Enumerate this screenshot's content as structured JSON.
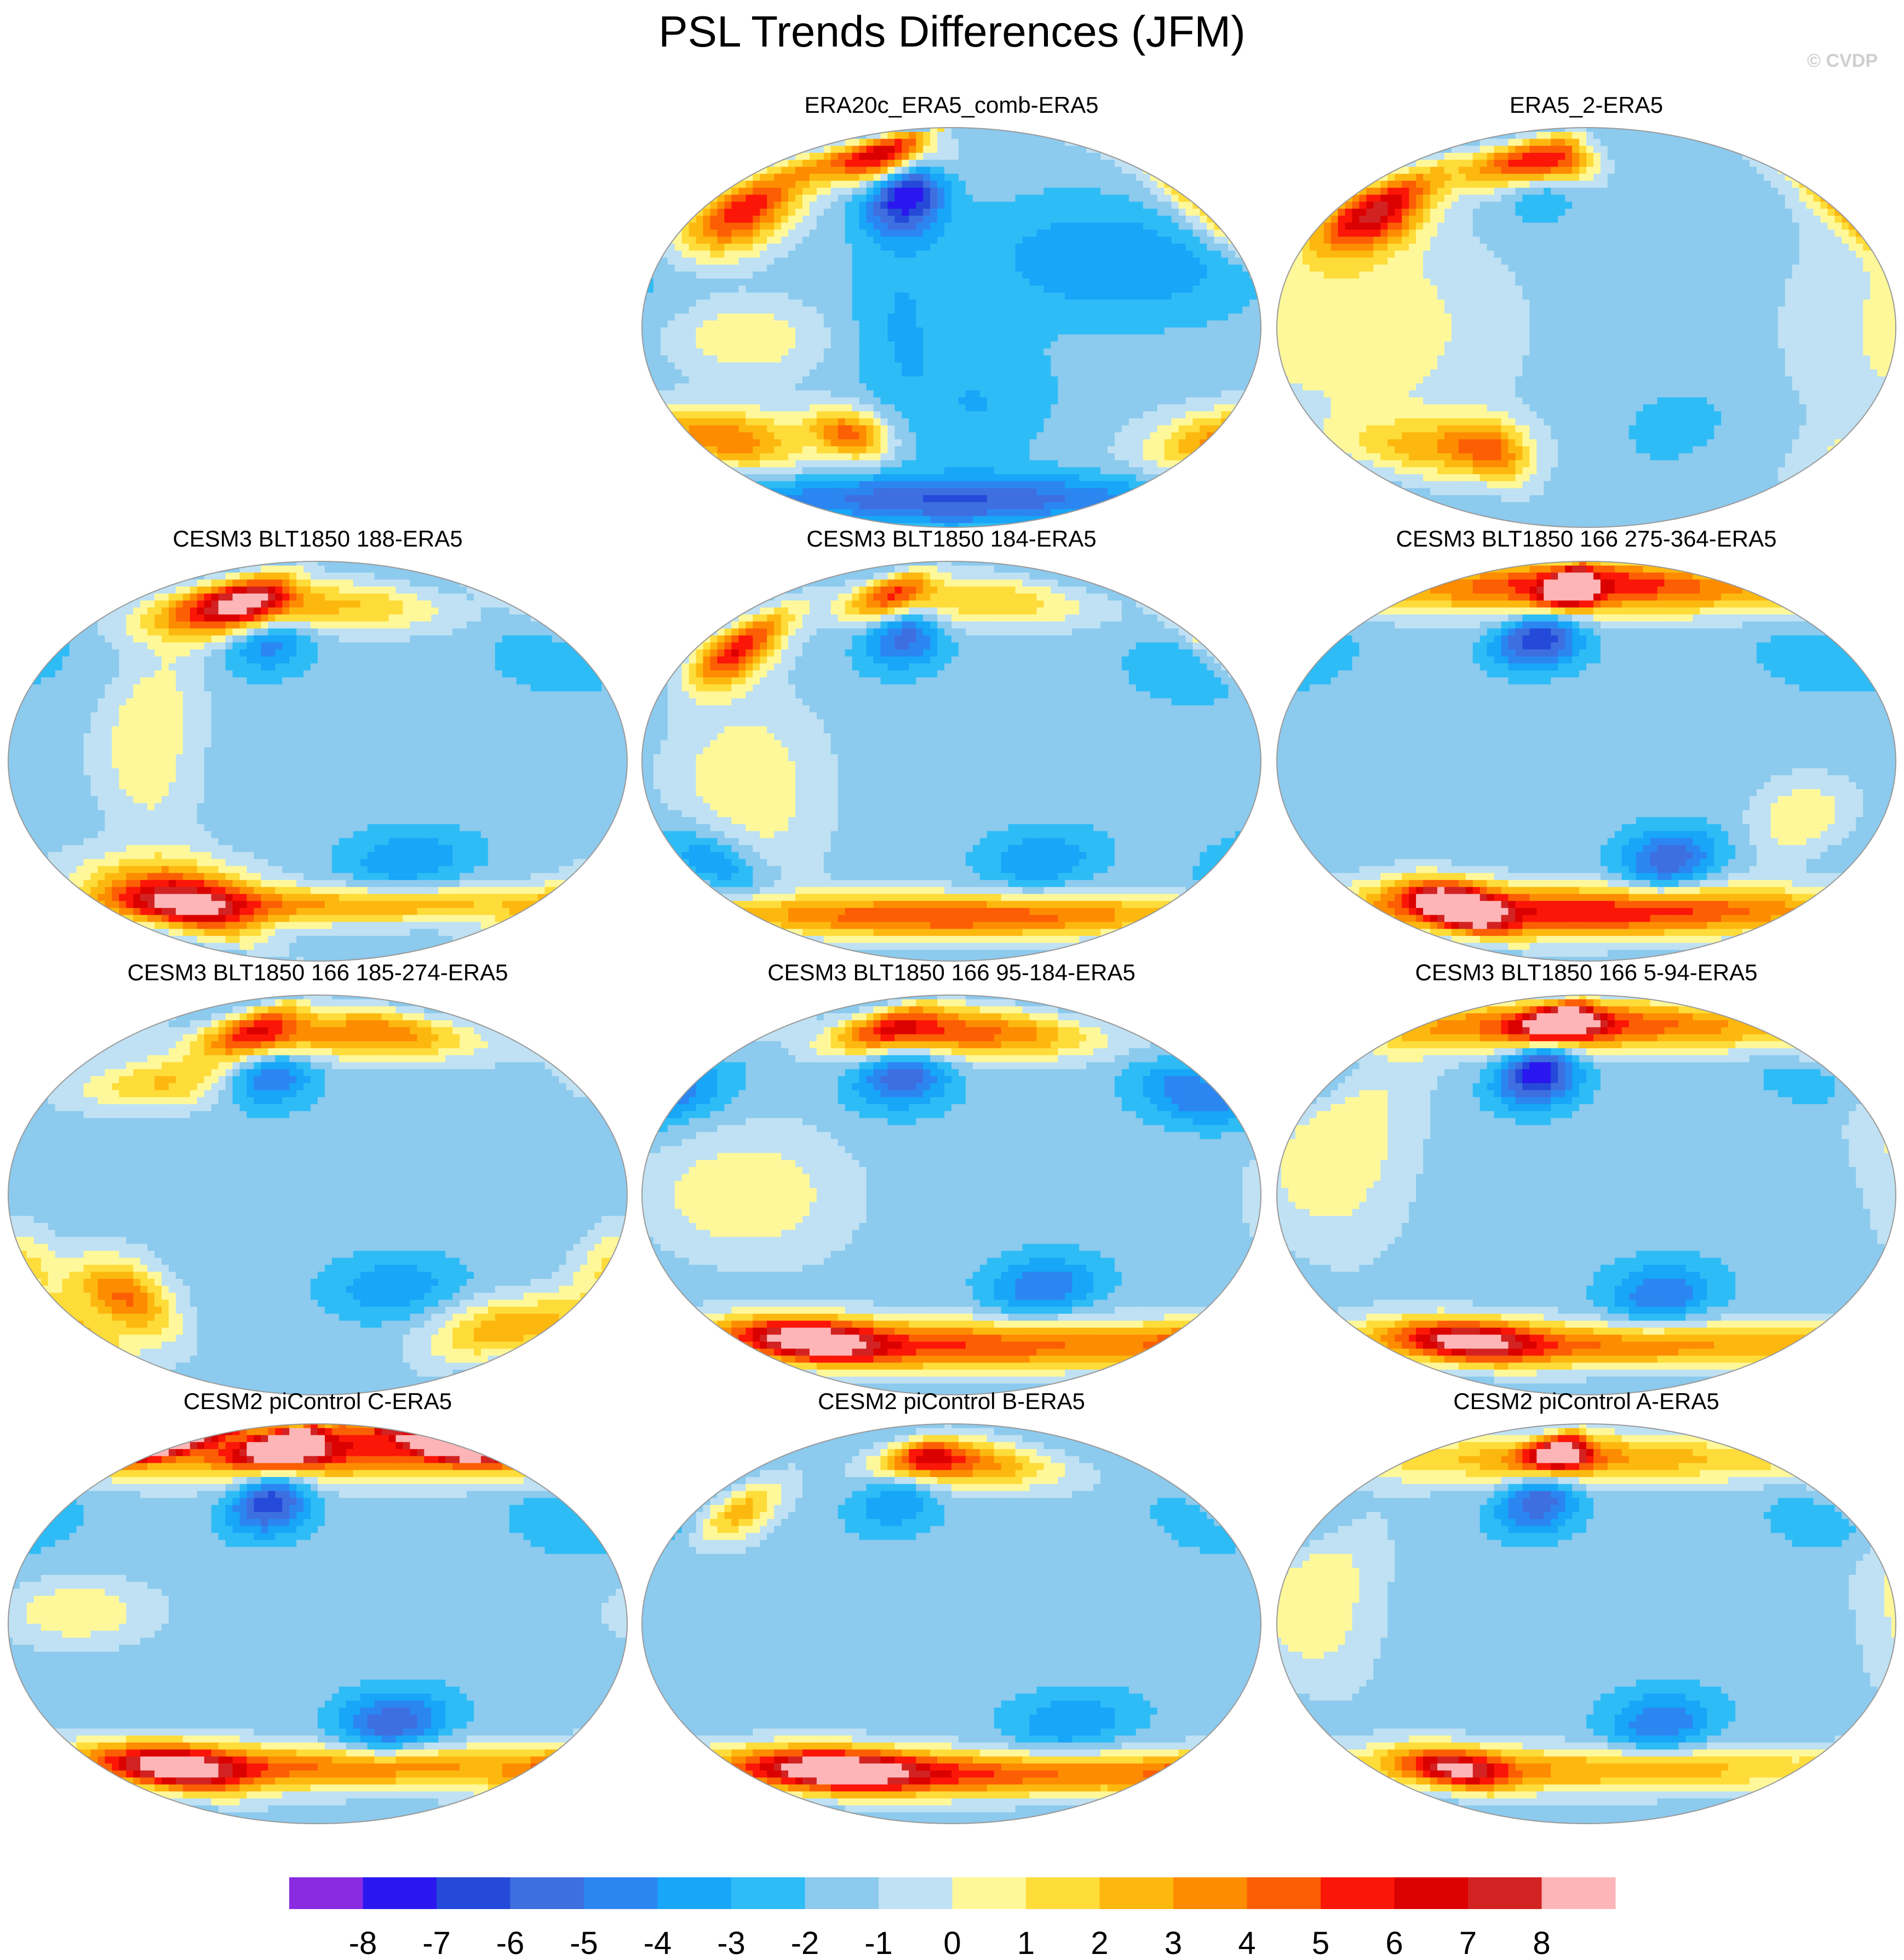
{
  "title": "PSL Trends Differences (JFM)",
  "copyright": "© CVDP",
  "panels": [
    {
      "id": "era20c",
      "title": "ERA20c_ERA5_comb-ERA5",
      "features": [
        {
          "lon": -150,
          "lat": 52,
          "sx": 26,
          "sy": 14,
          "v": 6
        },
        {
          "lon": -35,
          "lat": 60,
          "sx": 20,
          "sy": 12,
          "v": -8
        },
        {
          "lon": -80,
          "lat": 78,
          "sx": 40,
          "sy": 8,
          "v": 7
        },
        {
          "lon": 100,
          "lat": 30,
          "sx": 60,
          "sy": 18,
          "v": -4
        },
        {
          "lon": -160,
          "lat": -50,
          "sx": 40,
          "sy": 10,
          "v": 4
        },
        {
          "lon": -70,
          "lat": -48,
          "sx": 18,
          "sy": 8,
          "v": 4
        },
        {
          "lon": 0,
          "lat": -78,
          "sx": 180,
          "sy": 8,
          "v": -6
        },
        {
          "lon": 20,
          "lat": -35,
          "sx": 30,
          "sy": 20,
          "v": -3
        },
        {
          "lon": -30,
          "lat": 0,
          "sx": 20,
          "sy": 30,
          "v": -3
        },
        {
          "lon": -120,
          "lat": -5,
          "sx": 30,
          "sy": 12,
          "v": 1
        }
      ]
    },
    {
      "id": "era5-2",
      "title": "ERA5_2-ERA5",
      "features": [
        {
          "lon": -150,
          "lat": 52,
          "sx": 24,
          "sy": 13,
          "v": 7
        },
        {
          "lon": -35,
          "lat": 62,
          "sx": 18,
          "sy": 9,
          "v": -4
        },
        {
          "lon": -80,
          "lat": 75,
          "sx": 30,
          "sy": 8,
          "v": 4
        },
        {
          "lon": -30,
          "lat": 75,
          "sx": 25,
          "sy": 8,
          "v": 5
        },
        {
          "lon": -140,
          "lat": 0,
          "sx": 60,
          "sy": 30,
          "v": 1
        },
        {
          "lon": 60,
          "lat": -45,
          "sx": 20,
          "sy": 10,
          "v": -3
        },
        {
          "lon": -120,
          "lat": -55,
          "sx": 40,
          "sy": 10,
          "v": 2
        },
        {
          "lon": -70,
          "lat": -55,
          "sx": 20,
          "sy": 10,
          "v": 3
        }
      ]
    },
    {
      "id": "blt188",
      "title": "CESM3 BLT1850 188-ERA5",
      "features": [
        {
          "lon": 155,
          "lat": 45,
          "sx": 25,
          "sy": 10,
          "v": -3
        },
        {
          "lon": -35,
          "lat": 55,
          "sx": 20,
          "sy": 10,
          "v": -5
        },
        {
          "lon": -100,
          "lat": 70,
          "sx": 40,
          "sy": 10,
          "v": 4
        },
        {
          "lon": -60,
          "lat": 72,
          "sx": 30,
          "sy": 8,
          "v": 5
        },
        {
          "lon": 30,
          "lat": 70,
          "sx": 60,
          "sy": 8,
          "v": 2
        },
        {
          "lon": -110,
          "lat": -62,
          "sx": 40,
          "sy": 12,
          "v": 6
        },
        {
          "lon": 0,
          "lat": -65,
          "sx": 180,
          "sy": 6,
          "v": 3
        },
        {
          "lon": 60,
          "lat": -45,
          "sx": 30,
          "sy": 10,
          "v": -4
        },
        {
          "lon": -100,
          "lat": 10,
          "sx": 20,
          "sy": 30,
          "v": 1
        }
      ]
    },
    {
      "id": "blt184",
      "title": "CESM3 BLT1850 184-ERA5",
      "features": [
        {
          "lon": -150,
          "lat": 50,
          "sx": 18,
          "sy": 12,
          "v": 6
        },
        {
          "lon": -35,
          "lat": 58,
          "sx": 20,
          "sy": 11,
          "v": -6
        },
        {
          "lon": -60,
          "lat": 75,
          "sx": 30,
          "sy": 8,
          "v": 5
        },
        {
          "lon": 40,
          "lat": 72,
          "sx": 60,
          "sy": 8,
          "v": 2
        },
        {
          "lon": 150,
          "lat": 40,
          "sx": 25,
          "sy": 10,
          "v": -3
        },
        {
          "lon": 0,
          "lat": -70,
          "sx": 180,
          "sy": 7,
          "v": 5
        },
        {
          "lon": 60,
          "lat": -45,
          "sx": 28,
          "sy": 10,
          "v": -4
        },
        {
          "lon": -160,
          "lat": -45,
          "sx": 20,
          "sy": 10,
          "v": -4
        },
        {
          "lon": -120,
          "lat": -10,
          "sx": 30,
          "sy": 25,
          "v": 1
        }
      ]
    },
    {
      "id": "blt166-275",
      "title": "CESM3 BLT1850 166 275-364-ERA5",
      "features": [
        {
          "lon": 0,
          "lat": 80,
          "sx": 180,
          "sy": 9,
          "v": 6
        },
        {
          "lon": -20,
          "lat": 78,
          "sx": 20,
          "sy": 6,
          "v": 8
        },
        {
          "lon": -35,
          "lat": 55,
          "sx": 22,
          "sy": 9,
          "v": -7
        },
        {
          "lon": 160,
          "lat": 45,
          "sx": 30,
          "sy": 10,
          "v": -3
        },
        {
          "lon": 55,
          "lat": -45,
          "sx": 22,
          "sy": 10,
          "v": -6
        },
        {
          "lon": 0,
          "lat": -68,
          "sx": 180,
          "sy": 8,
          "v": 6
        },
        {
          "lon": -110,
          "lat": -65,
          "sx": 25,
          "sy": 8,
          "v": 8
        },
        {
          "lon": 130,
          "lat": -25,
          "sx": 20,
          "sy": 12,
          "v": 1
        }
      ]
    },
    {
      "id": "blt166-185",
      "title": "CESM3 BLT1850 166 185-274-ERA5",
      "features": [
        {
          "lon": -60,
          "lat": 73,
          "sx": 35,
          "sy": 9,
          "v": 6
        },
        {
          "lon": 60,
          "lat": 73,
          "sx": 60,
          "sy": 8,
          "v": 4
        },
        {
          "lon": -35,
          "lat": 55,
          "sx": 22,
          "sy": 10,
          "v": -6
        },
        {
          "lon": -110,
          "lat": 50,
          "sx": 40,
          "sy": 8,
          "v": 2
        },
        {
          "lon": -130,
          "lat": -45,
          "sx": 20,
          "sy": 12,
          "v": 4
        },
        {
          "lon": 150,
          "lat": -60,
          "sx": 40,
          "sy": 10,
          "v": 3
        },
        {
          "lon": 50,
          "lat": -42,
          "sx": 30,
          "sy": 10,
          "v": -4
        },
        {
          "lon": 180,
          "lat": -30,
          "sx": 15,
          "sy": 12,
          "v": 1
        }
      ]
    },
    {
      "id": "blt166-95",
      "title": "CESM3 BLT1850 166 95-184-ERA5",
      "features": [
        {
          "lon": -35,
          "lat": 55,
          "sx": 24,
          "sy": 11,
          "v": -6
        },
        {
          "lon": 165,
          "lat": 45,
          "sx": 28,
          "sy": 10,
          "v": -5
        },
        {
          "lon": -60,
          "lat": 75,
          "sx": 40,
          "sy": 8,
          "v": 5
        },
        {
          "lon": 40,
          "lat": 73,
          "sx": 70,
          "sy": 8,
          "v": 4
        },
        {
          "lon": 0,
          "lat": -68,
          "sx": 180,
          "sy": 8,
          "v": 5
        },
        {
          "lon": -120,
          "lat": -65,
          "sx": 40,
          "sy": 7,
          "v": 6
        },
        {
          "lon": 60,
          "lat": -42,
          "sx": 25,
          "sy": 10,
          "v": -5
        },
        {
          "lon": -120,
          "lat": 0,
          "sx": 40,
          "sy": 20,
          "v": 1
        }
      ]
    },
    {
      "id": "blt166-5",
      "title": "CESM3 BLT1850 166 5-94-ERA5",
      "features": [
        {
          "lon": -35,
          "lat": 55,
          "sx": 20,
          "sy": 10,
          "v": -8
        },
        {
          "lon": -30,
          "lat": 78,
          "sx": 30,
          "sy": 6,
          "v": 7
        },
        {
          "lon": 0,
          "lat": 77,
          "sx": 180,
          "sy": 8,
          "v": 5
        },
        {
          "lon": 160,
          "lat": 50,
          "sx": 25,
          "sy": 8,
          "v": -3
        },
        {
          "lon": 50,
          "lat": -45,
          "sx": 25,
          "sy": 10,
          "v": -5
        },
        {
          "lon": 0,
          "lat": -68,
          "sx": 180,
          "sy": 7,
          "v": 4
        },
        {
          "lon": -100,
          "lat": -65,
          "sx": 40,
          "sy": 7,
          "v": 5
        },
        {
          "lon": -150,
          "lat": 20,
          "sx": 30,
          "sy": 30,
          "v": 1
        }
      ]
    },
    {
      "id": "cesm2-c",
      "title": "CESM2 piControl C-ERA5",
      "features": [
        {
          "lon": 0,
          "lat": 80,
          "sx": 180,
          "sy": 10,
          "v": 6
        },
        {
          "lon": 160,
          "lat": 80,
          "sx": 30,
          "sy": 6,
          "v": 8
        },
        {
          "lon": -40,
          "lat": 80,
          "sx": 30,
          "sy": 6,
          "v": 8
        },
        {
          "lon": -35,
          "lat": 55,
          "sx": 20,
          "sy": 10,
          "v": -7
        },
        {
          "lon": 50,
          "lat": -45,
          "sx": 25,
          "sy": 10,
          "v": -6
        },
        {
          "lon": 0,
          "lat": -65,
          "sx": 180,
          "sy": 7,
          "v": 4
        },
        {
          "lon": -120,
          "lat": -65,
          "sx": 40,
          "sy": 8,
          "v": 6
        },
        {
          "lon": 165,
          "lat": 45,
          "sx": 25,
          "sy": 10,
          "v": -3
        },
        {
          "lon": -140,
          "lat": 5,
          "sx": 30,
          "sy": 10,
          "v": 1
        }
      ]
    },
    {
      "id": "cesm2-b",
      "title": "CESM2 piControl B-ERA5",
      "features": [
        {
          "lon": -150,
          "lat": 50,
          "sx": 18,
          "sy": 10,
          "v": 3
        },
        {
          "lon": -40,
          "lat": 55,
          "sx": 22,
          "sy": 10,
          "v": -4
        },
        {
          "lon": 30,
          "lat": 72,
          "sx": 50,
          "sy": 8,
          "v": 3
        },
        {
          "lon": -30,
          "lat": 75,
          "sx": 30,
          "sy": 6,
          "v": 5
        },
        {
          "lon": 0,
          "lat": -68,
          "sx": 180,
          "sy": 7,
          "v": 5
        },
        {
          "lon": -100,
          "lat": -65,
          "sx": 50,
          "sy": 7,
          "v": 6
        },
        {
          "lon": 80,
          "lat": -45,
          "sx": 30,
          "sy": 10,
          "v": -4
        },
        {
          "lon": 175,
          "lat": 45,
          "sx": 25,
          "sy": 10,
          "v": -3
        }
      ]
    },
    {
      "id": "cesm2-a",
      "title": "CESM2 piControl A-ERA5",
      "features": [
        {
          "lon": -35,
          "lat": 55,
          "sx": 20,
          "sy": 10,
          "v": -6
        },
        {
          "lon": -30,
          "lat": 77,
          "sx": 25,
          "sy": 6,
          "v": 7
        },
        {
          "lon": 0,
          "lat": 75,
          "sx": 180,
          "sy": 8,
          "v": 3
        },
        {
          "lon": 50,
          "lat": -45,
          "sx": 25,
          "sy": 10,
          "v": -5
        },
        {
          "lon": 0,
          "lat": -66,
          "sx": 180,
          "sy": 7,
          "v": 3
        },
        {
          "lon": -110,
          "lat": -65,
          "sx": 30,
          "sy": 7,
          "v": 5
        },
        {
          "lon": 160,
          "lat": 45,
          "sx": 25,
          "sy": 10,
          "v": -3
        },
        {
          "lon": -160,
          "lat": 10,
          "sx": 25,
          "sy": 25,
          "v": 1
        }
      ]
    }
  ],
  "colorbar": {
    "colors": [
      "#8a2be2",
      "#2a17f0",
      "#2549d9",
      "#3e6fe0",
      "#2b86f2",
      "#17a6f8",
      "#2ebcf6",
      "#8ccaee",
      "#bfe1f3",
      "#fff89a",
      "#fedc3a",
      "#fdb80f",
      "#fd8c01",
      "#fc5e04",
      "#fb1607",
      "#db0100",
      "#d32222",
      "#fdb5b7"
    ],
    "labels": [
      "-8",
      "-7",
      "-6",
      "-5",
      "-4",
      "-3",
      "-2",
      "-1",
      "0",
      "1",
      "2",
      "3",
      "4",
      "5",
      "6",
      "7",
      "8"
    ],
    "baseline": -1.5
  }
}
